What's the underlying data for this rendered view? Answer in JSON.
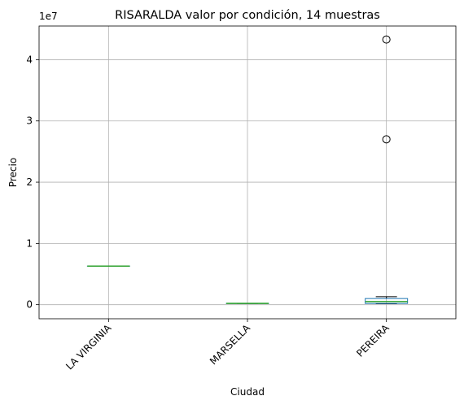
{
  "chart_data": {
    "type": "boxplot",
    "title": "RISARALDA valor por condición, 14 muestras",
    "xlabel": "Ciudad",
    "ylabel": "Precio",
    "y_offset_label": "1e7",
    "y_scale_factor": 10000000,
    "ylim": [
      -2300000,
      45500000
    ],
    "yticks": [
      0,
      10000000,
      20000000,
      30000000,
      40000000
    ],
    "ytick_labels": [
      "0",
      "1",
      "2",
      "3",
      "4"
    ],
    "grid": true,
    "categories": [
      "LA VIRGINIA",
      "MARSELLA",
      "PEREIRA"
    ],
    "boxes": [
      {
        "category": "LA VIRGINIA",
        "whisker_low": 6300000,
        "q1": 6300000,
        "median": 6300000,
        "q3": 6300000,
        "whisker_high": 6300000,
        "outliers": []
      },
      {
        "category": "MARSELLA",
        "whisker_low": 200000,
        "q1": 200000,
        "median": 200000,
        "q3": 200000,
        "whisker_high": 200000,
        "outliers": []
      },
      {
        "category": "PEREIRA",
        "whisker_low": 150000,
        "q1": 200000,
        "median": 500000,
        "q3": 1000000,
        "whisker_high": 1300000,
        "outliers": [
          27000000,
          43300000
        ]
      }
    ],
    "colors": {
      "box": "#1f77b4",
      "median": "#2ca02c",
      "whisker": "#000000",
      "grid": "#b0b0b0",
      "axes": "#000000"
    }
  }
}
